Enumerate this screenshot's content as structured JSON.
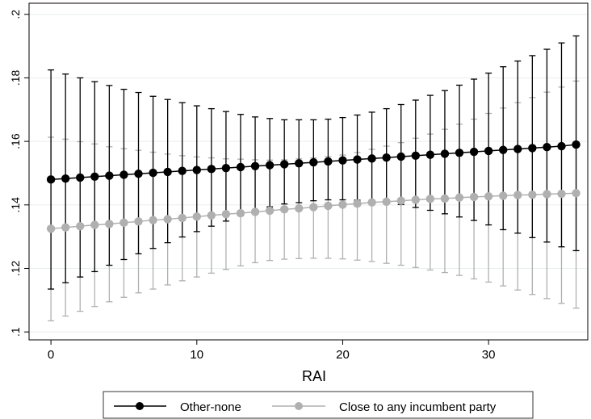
{
  "chart_data": {
    "type": "line",
    "xlabel": "RAI",
    "ylabel": "",
    "xlim": [
      -1.5,
      36.8
    ],
    "ylim": [
      0.0975,
      0.2035
    ],
    "x_ticks": [
      0,
      10,
      20,
      30
    ],
    "y_ticks": [
      0.1,
      0.12,
      0.14,
      0.16,
      0.18,
      0.2
    ],
    "x_tick_labels": [
      "0",
      "10",
      "20",
      "30"
    ],
    "y_tick_labels": [
      ".1",
      ".12",
      ".14",
      ".16",
      ".18",
      ".2"
    ],
    "grid": "horizontal",
    "legend_position": "bottom",
    "series": [
      {
        "name": "Other-none",
        "color": "#000000",
        "x": [
          0,
          1,
          2,
          3,
          4,
          5,
          6,
          7,
          8,
          9,
          10,
          11,
          12,
          13,
          14,
          15,
          16,
          17,
          18,
          19,
          20,
          21,
          22,
          23,
          24,
          25,
          26,
          27,
          28,
          29,
          30,
          31,
          32,
          33,
          34,
          35,
          36
        ],
        "values": [
          0.148,
          0.1483,
          0.1486,
          0.1489,
          0.1492,
          0.1495,
          0.1498,
          0.1501,
          0.1504,
          0.1507,
          0.151,
          0.1513,
          0.1516,
          0.1519,
          0.1522,
          0.1525,
          0.1528,
          0.1531,
          0.1534,
          0.1537,
          0.154,
          0.1543,
          0.1546,
          0.1549,
          0.1552,
          0.1555,
          0.1558,
          0.1561,
          0.1564,
          0.1567,
          0.157,
          0.1573,
          0.1576,
          0.1579,
          0.1582,
          0.1585,
          0.159
        ],
        "ci_low": [
          0.1135,
          0.1155,
          0.1173,
          0.119,
          0.121,
          0.1228,
          0.1246,
          0.1263,
          0.1281,
          0.1299,
          0.1316,
          0.1333,
          0.1349,
          0.1366,
          0.1382,
          0.1394,
          0.1403,
          0.1407,
          0.1413,
          0.1416,
          0.1416,
          0.1415,
          0.1412,
          0.1408,
          0.1401,
          0.1392,
          0.1383,
          0.1372,
          0.1362,
          0.1351,
          0.1337,
          0.1322,
          0.1311,
          0.1297,
          0.1283,
          0.1268,
          0.1256
        ],
        "ci_high": [
          0.1825,
          0.1812,
          0.18,
          0.1788,
          0.1776,
          0.1764,
          0.1754,
          0.1742,
          0.1732,
          0.1722,
          0.1712,
          0.1703,
          0.1694,
          0.1685,
          0.1677,
          0.1672,
          0.1668,
          0.1668,
          0.1668,
          0.167,
          0.1675,
          0.1683,
          0.1692,
          0.1703,
          0.1716,
          0.173,
          0.1745,
          0.176,
          0.1777,
          0.1796,
          0.1815,
          0.1835,
          0.1853,
          0.187,
          0.189,
          0.191,
          0.1932
        ]
      },
      {
        "name": "Close to any incumbent party",
        "color": "#b0b0b0",
        "x": [
          0,
          1,
          2,
          3,
          4,
          5,
          6,
          7,
          8,
          9,
          10,
          11,
          12,
          13,
          14,
          15,
          16,
          17,
          18,
          19,
          20,
          21,
          22,
          23,
          24,
          25,
          26,
          27,
          28,
          29,
          30,
          31,
          32,
          33,
          34,
          35,
          36
        ],
        "values": [
          0.1325,
          0.1329,
          0.1333,
          0.1337,
          0.134,
          0.1344,
          0.1348,
          0.1352,
          0.1355,
          0.1359,
          0.1363,
          0.1367,
          0.1371,
          0.1374,
          0.1378,
          0.1382,
          0.1386,
          0.1389,
          0.1393,
          0.1397,
          0.1401,
          0.1404,
          0.1408,
          0.141,
          0.1413,
          0.1416,
          0.1419,
          0.142,
          0.1423,
          0.1425,
          0.1427,
          0.1429,
          0.1431,
          0.1432,
          0.1434,
          0.1435,
          0.1437
        ],
        "ci_low": [
          0.1035,
          0.105,
          0.1065,
          0.108,
          0.1095,
          0.1109,
          0.1123,
          0.1135,
          0.1148,
          0.1161,
          0.1173,
          0.1185,
          0.1197,
          0.1208,
          0.1218,
          0.1225,
          0.1229,
          0.1231,
          0.1232,
          0.1232,
          0.123,
          0.1226,
          0.1222,
          0.1216,
          0.121,
          0.1203,
          0.1195,
          0.1187,
          0.1178,
          0.1167,
          0.1157,
          0.1145,
          0.1132,
          0.1118,
          0.1105,
          0.109,
          0.1075
        ],
        "ci_high": [
          0.1613,
          0.1607,
          0.1599,
          0.1592,
          0.1583,
          0.1577,
          0.1572,
          0.1566,
          0.156,
          0.1555,
          0.1551,
          0.1548,
          0.1545,
          0.1544,
          0.1542,
          0.1541,
          0.1542,
          0.1545,
          0.1548,
          0.1552,
          0.1557,
          0.1565,
          0.1575,
          0.1585,
          0.1596,
          0.161,
          0.1623,
          0.1638,
          0.1654,
          0.167,
          0.1688,
          0.1705,
          0.1722,
          0.1738,
          0.1755,
          0.1771,
          0.179
        ]
      }
    ]
  }
}
